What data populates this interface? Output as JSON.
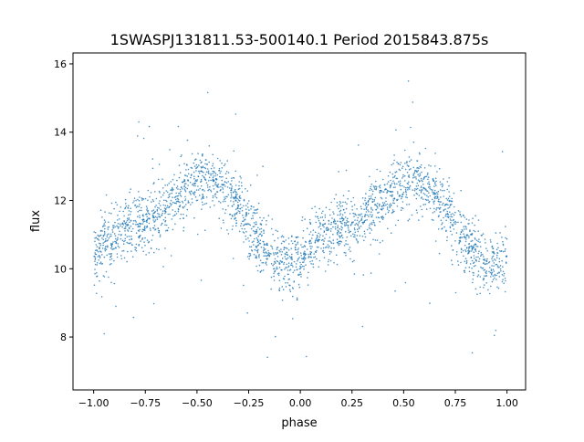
{
  "chart_data": {
    "type": "scatter",
    "title": "1SWASPJ131811.53-500140.1 Period 2015843.875s",
    "xlabel": "phase",
    "ylabel": "flux",
    "xlim": [
      -1.1,
      1.09
    ],
    "ylim": [
      6.45,
      16.32
    ],
    "xticks": [
      -1.0,
      -0.75,
      -0.5,
      -0.25,
      0.0,
      0.25,
      0.5,
      0.75,
      1.0
    ],
    "xtick_labels": [
      "−1.00",
      "−0.75",
      "−0.50",
      "−0.25",
      "0.00",
      "0.25",
      "0.50",
      "0.75",
      "1.00"
    ],
    "yticks": [
      8,
      10,
      12,
      14,
      16
    ],
    "ytick_labels": [
      "8",
      "10",
      "12",
      "14",
      "16"
    ],
    "grid": false,
    "point_color": "#1f77b4",
    "phase_trend": {
      "phase": [
        0.0,
        0.05,
        0.1,
        0.15,
        0.2,
        0.25,
        0.3,
        0.35,
        0.4,
        0.45,
        0.5,
        0.55,
        0.6,
        0.65,
        0.7,
        0.75,
        0.8,
        0.85,
        0.9,
        0.95,
        1.0
      ],
      "flux": [
        10.3,
        10.8,
        10.9,
        11.1,
        11.3,
        11.3,
        11.5,
        11.8,
        12.0,
        12.3,
        12.5,
        12.6,
        12.4,
        12.2,
        11.8,
        11.2,
        10.8,
        10.4,
        10.2,
        10.1,
        10.3
      ]
    },
    "scatter_spread_sigma": 0.45,
    "flux_range_observed": [
      6.9,
      15.5
    ]
  }
}
